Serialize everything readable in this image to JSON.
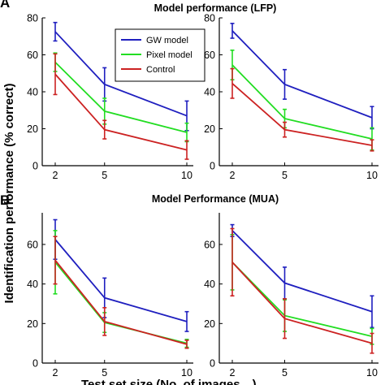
{
  "figure": {
    "ylabel": "Identification performance (% correct)",
    "xlabel": "Test set size (No. of images…)"
  },
  "rows": [
    {
      "letter": "A",
      "title": "Model performance (LFP)"
    },
    {
      "letter": "B",
      "title": "Model Performance (MUA)"
    }
  ],
  "legend": {
    "entries": [
      {
        "label": "GW model",
        "color": "#1f1fbf"
      },
      {
        "label": "Pixel model",
        "color": "#22dd22"
      },
      {
        "label": "Control",
        "color": "#cc2222"
      }
    ]
  },
  "chart_data": [
    {
      "type": "line",
      "panel": "A-left",
      "x": [
        2,
        5,
        10
      ],
      "xticks": [
        2,
        5,
        10
      ],
      "yticks": [
        0,
        20,
        40,
        60,
        80
      ],
      "ylim": [
        0,
        80
      ],
      "series": [
        {
          "name": "GW model",
          "color": "#1f1fbf",
          "values": [
            72.5,
            44,
            27
          ],
          "err": [
            5,
            9,
            8
          ]
        },
        {
          "name": "Pixel model",
          "color": "#22dd22",
          "values": [
            56,
            29.5,
            18
          ],
          "err": [
            5,
            7,
            5
          ]
        },
        {
          "name": "Control",
          "color": "#cc2222",
          "values": [
            49.5,
            19.5,
            8.5
          ],
          "err": [
            11,
            5,
            5
          ]
        }
      ]
    },
    {
      "type": "line",
      "panel": "A-right",
      "x": [
        2,
        5,
        10
      ],
      "xticks": [
        2,
        5,
        10
      ],
      "yticks": [
        0,
        20,
        40,
        60,
        80
      ],
      "ylim": [
        0,
        80
      ],
      "series": [
        {
          "name": "GW model",
          "color": "#1f1fbf",
          "values": [
            73,
            44,
            26
          ],
          "err": [
            4,
            8,
            6
          ]
        },
        {
          "name": "Pixel model",
          "color": "#22dd22",
          "values": [
            54.5,
            25.5,
            14.5
          ],
          "err": [
            8,
            5,
            6
          ]
        },
        {
          "name": "Control",
          "color": "#cc2222",
          "values": [
            44.5,
            19.5,
            11
          ],
          "err": [
            8,
            4,
            3
          ]
        }
      ]
    },
    {
      "type": "line",
      "panel": "B-left",
      "x": [
        2,
        5,
        10
      ],
      "xticks": [
        2,
        5,
        10
      ],
      "yticks": [
        0,
        20,
        40,
        60
      ],
      "ylim": [
        0,
        76
      ],
      "series": [
        {
          "name": "GW model",
          "color": "#1f1fbf",
          "values": [
            62.5,
            33,
            21
          ],
          "err": [
            10,
            10,
            5
          ]
        },
        {
          "name": "Pixel model",
          "color": "#22dd22",
          "values": [
            51,
            20.5,
            10
          ],
          "err": [
            16,
            5,
            2
          ]
        },
        {
          "name": "Control",
          "color": "#cc2222",
          "values": [
            52,
            21,
            9.5
          ],
          "err": [
            12,
            7,
            2
          ]
        }
      ]
    },
    {
      "type": "line",
      "panel": "B-right",
      "x": [
        2,
        5,
        10
      ],
      "xticks": [
        2,
        5,
        10
      ],
      "yticks": [
        0,
        20,
        40,
        60
      ],
      "ylim": [
        0,
        76
      ],
      "series": [
        {
          "name": "GW model",
          "color": "#1f1fbf",
          "values": [
            67,
            40.5,
            26
          ],
          "err": [
            3,
            8,
            8
          ]
        },
        {
          "name": "Pixel model",
          "color": "#22dd22",
          "values": [
            51,
            24,
            13.5
          ],
          "err": [
            14,
            8,
            4
          ]
        },
        {
          "name": "Control",
          "color": "#cc2222",
          "values": [
            51,
            22.5,
            10
          ],
          "err": [
            17,
            10,
            5
          ]
        }
      ]
    }
  ]
}
